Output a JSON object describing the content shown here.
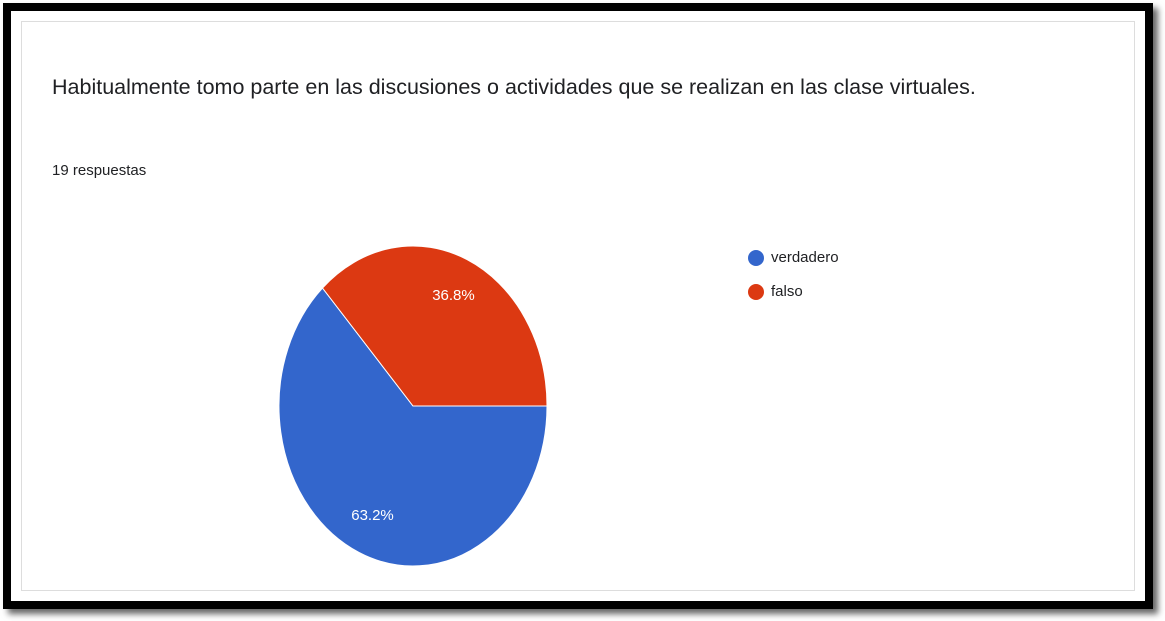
{
  "chart_data": {
    "type": "pie",
    "title": "Habitualmente tomo parte en las discusiones o actividades que se realizan en las clase virtuales.",
    "subtitle": "19 respuestas",
    "categories": [
      "verdadero",
      "falso"
    ],
    "values": [
      63.2,
      36.8
    ],
    "value_labels": [
      "63.2%",
      "36.8%"
    ],
    "colors": [
      "#3366cc",
      "#dc3912"
    ],
    "legend": "right"
  }
}
